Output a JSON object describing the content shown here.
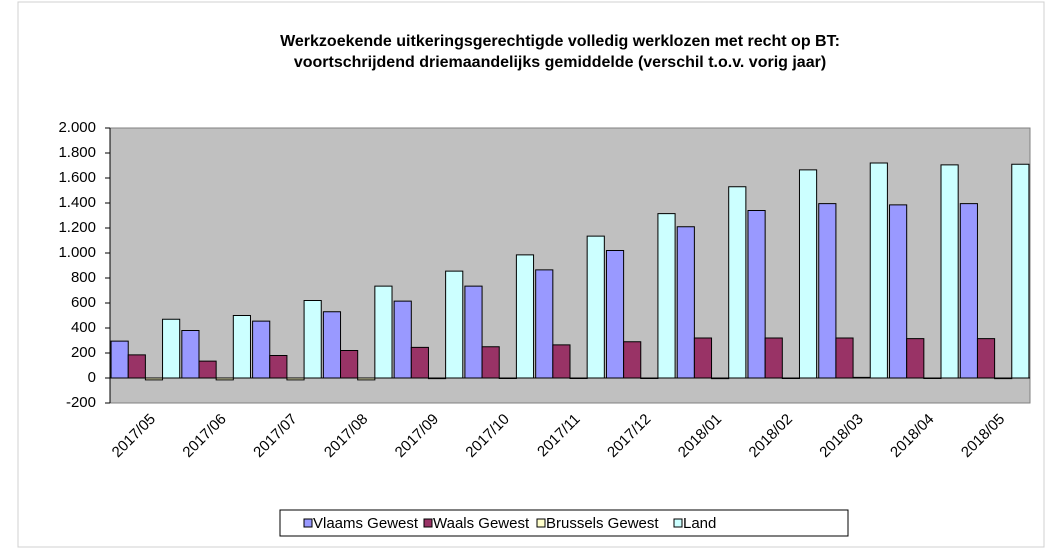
{
  "chart_data": {
    "type": "bar",
    "title": [
      "Werkzoekende uitkeringsgerechtigde volledig werklozen met recht op BT:",
      "voortschrijdend driemaandelijks gemiddelde (verschil t.o.v. vorig jaar)"
    ],
    "categories": [
      "2017/05",
      "2017/06",
      "2017/07",
      "2017/08",
      "2017/09",
      "2017/10",
      "2017/11",
      "2017/12",
      "2018/01",
      "2018/02",
      "2018/03",
      "2018/04",
      "2018/05"
    ],
    "series": [
      {
        "name": "Vlaams Gewest",
        "color": "#9999ff",
        "values": [
          295,
          380,
          455,
          530,
          615,
          735,
          865,
          1020,
          1210,
          1340,
          1395,
          1385,
          1395
        ]
      },
      {
        "name": "Waals Gewest",
        "color": "#993366",
        "values": [
          185,
          135,
          180,
          220,
          245,
          250,
          265,
          290,
          320,
          320,
          320,
          315,
          315
        ]
      },
      {
        "name": "Brussels Gewest",
        "color": "#ffffcc",
        "values": [
          -15,
          -15,
          -15,
          -15,
          -5,
          0,
          0,
          0,
          -5,
          0,
          5,
          0,
          -5
        ]
      },
      {
        "name": "Land",
        "color": "#ccffff",
        "values": [
          470,
          500,
          620,
          735,
          855,
          985,
          1135,
          1315,
          1530,
          1665,
          1720,
          1705,
          1710
        ]
      }
    ],
    "ylim": [
      -200,
      2000
    ],
    "yticks": [
      {
        "value": 2000,
        "label": "2.000"
      },
      {
        "value": 1800,
        "label": "1.800"
      },
      {
        "value": 1600,
        "label": "1.600"
      },
      {
        "value": 1400,
        "label": "1.400"
      },
      {
        "value": 1200,
        "label": "1.200"
      },
      {
        "value": 1000,
        "label": "1.000"
      },
      800,
      600,
      400,
      200,
      0,
      -200
    ],
    "grid": false,
    "legend": "bottom",
    "plot_background": "#c0c0c0"
  }
}
